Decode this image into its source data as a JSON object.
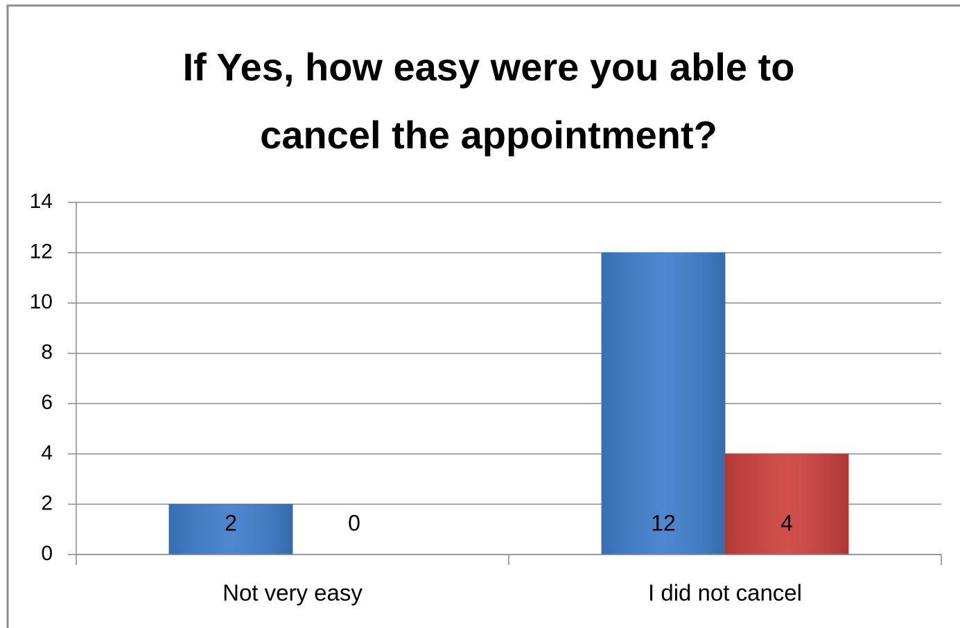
{
  "chart_data": {
    "type": "bar",
    "title": "If Yes, how easy were you able to cancel the appointment?",
    "categories": [
      "Not very easy",
      "I did not cancel"
    ],
    "series": [
      {
        "color": "#3f7dcb",
        "values": [
          2,
          12
        ]
      },
      {
        "color": "#cc403c",
        "values": [
          0,
          4
        ]
      }
    ],
    "ylim": [
      0,
      14
    ],
    "yticks": [
      0,
      2,
      4,
      6,
      8,
      10,
      12,
      14
    ],
    "grid": true
  }
}
